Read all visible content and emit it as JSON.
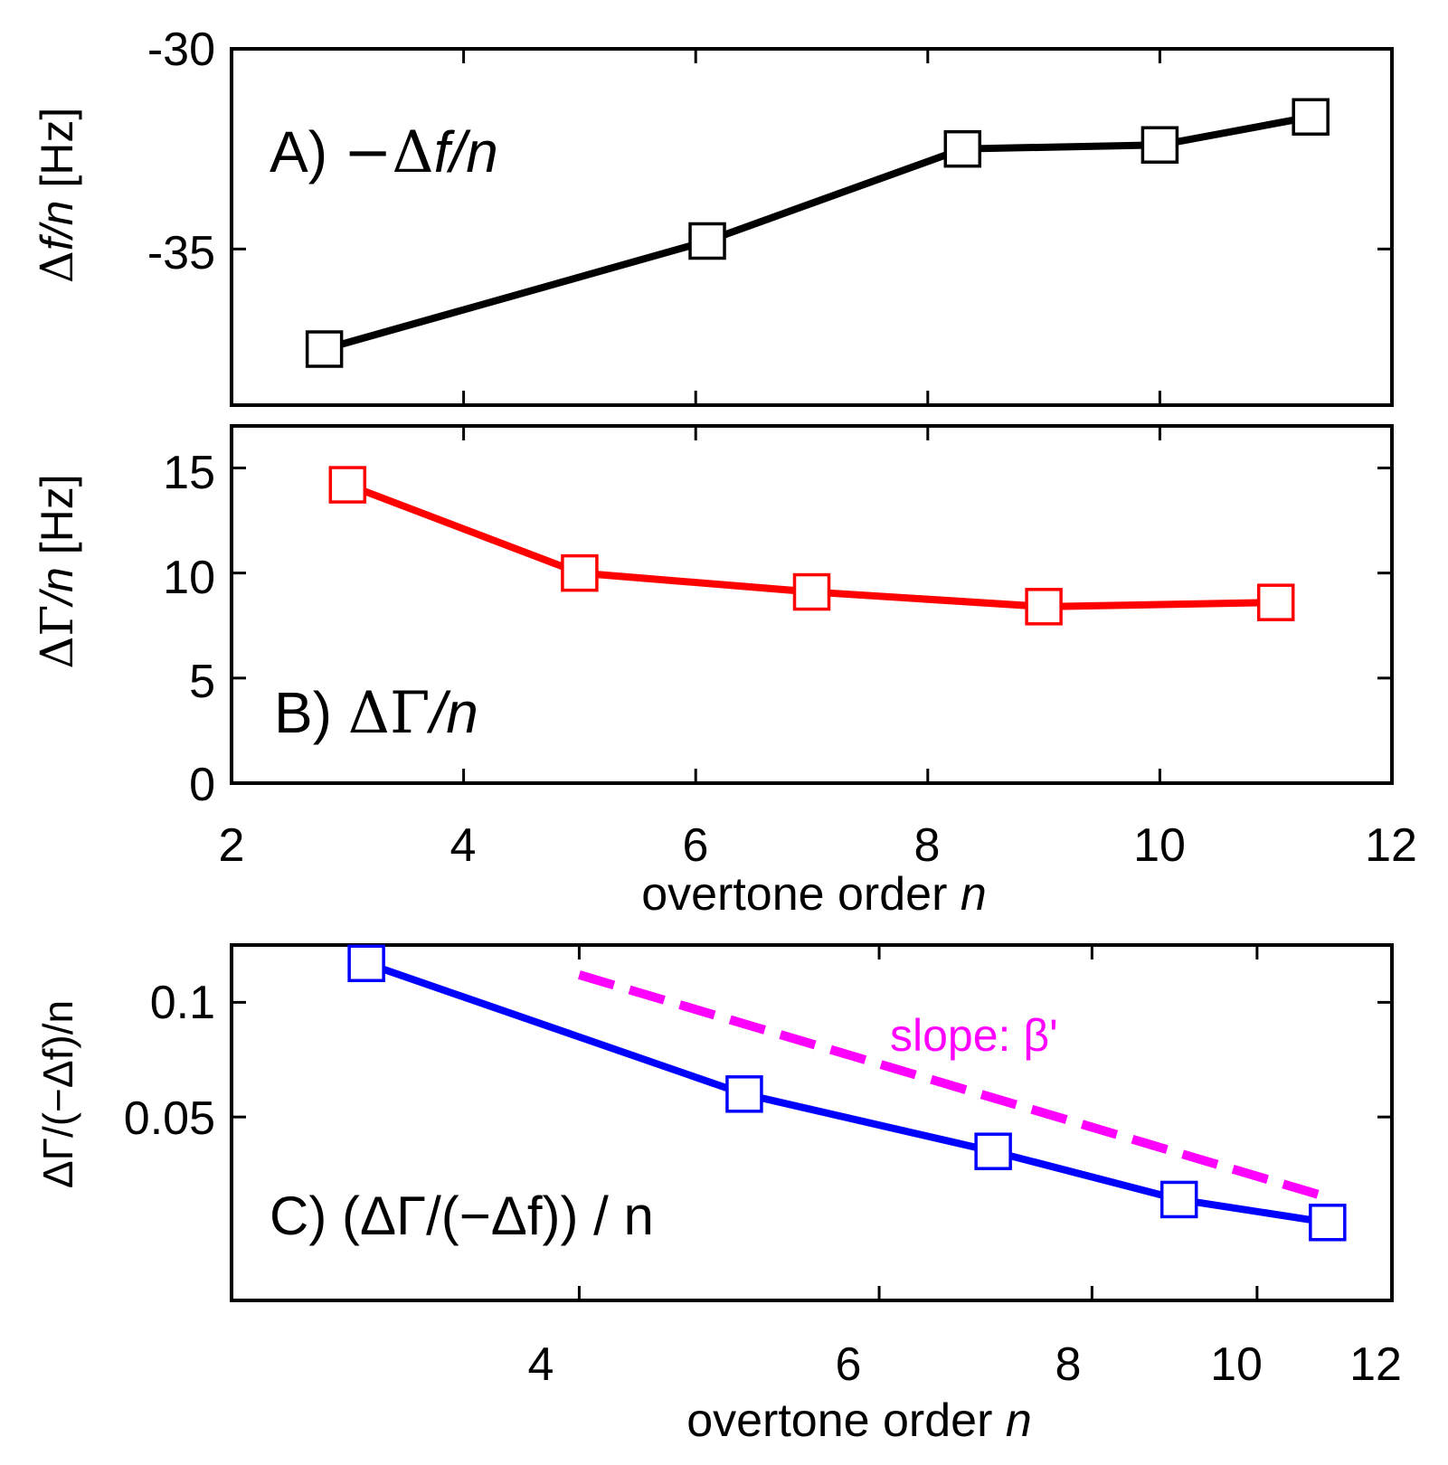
{
  "chart_data": [
    {
      "id": "A",
      "type": "line",
      "panel_label": "A)",
      "panel_title_symbol": "−Δ",
      "panel_title_var": "f/n",
      "ylabel_symbol": "Δ",
      "ylabel_var": "f/n",
      "ylabel_unit": "[Hz]",
      "xscale": "linear",
      "xlim": [
        2,
        12
      ],
      "ylim": [
        -38.9,
        -30
      ],
      "x_ticks": [
        2,
        4,
        6,
        8,
        10,
        12
      ],
      "y_ticks": [
        -30,
        -35
      ],
      "y_tick_labels": [
        "-30",
        "-35"
      ],
      "color": "#000000",
      "series": [
        {
          "name": "-Δf/n",
          "x": [
            2.8,
            6.1,
            8.3,
            10.0,
            11.3
          ],
          "y": [
            -37.5,
            -34.8,
            -32.5,
            -32.4,
            -31.7
          ]
        }
      ]
    },
    {
      "id": "B",
      "type": "line",
      "panel_label": "B)",
      "panel_title_symbol": "ΔΓ",
      "panel_title_var": "/n",
      "ylabel_symbol": "ΔΓ",
      "ylabel_var": "/n",
      "ylabel_unit": "[Hz]",
      "xscale": "linear",
      "xlim": [
        2,
        12
      ],
      "ylim": [
        0,
        17
      ],
      "x_ticks": [
        2,
        4,
        6,
        8,
        10,
        12
      ],
      "x_tick_labels": [
        "2",
        "4",
        "6",
        "8",
        "10",
        "12"
      ],
      "y_ticks": [
        0,
        5,
        10,
        15
      ],
      "y_tick_labels": [
        "0",
        "5",
        "10",
        "15"
      ],
      "xlabel": "overtone order",
      "xlabel_var": "n",
      "color": "#ff0000",
      "series": [
        {
          "name": "ΔΓ/n",
          "x": [
            3,
            5,
            7,
            9,
            11
          ],
          "y": [
            14.2,
            10.0,
            9.1,
            8.4,
            8.6
          ]
        }
      ]
    },
    {
      "id": "C",
      "type": "line",
      "panel_label": "C)",
      "panel_title": "(ΔΓ/(−Δf)) / n",
      "ylabel": "ΔΓ/(−Δf)/n",
      "xscale": "log",
      "xlim": [
        2.5,
        12
      ],
      "ylim": [
        -0.03,
        0.125
      ],
      "x_ticks": [
        4,
        6,
        8,
        10,
        12
      ],
      "x_tick_labels": [
        "4",
        "6",
        "8",
        "10",
        "12"
      ],
      "y_ticks": [
        0.1,
        0.05
      ],
      "y_tick_labels": [
        "0.1",
        "0.05"
      ],
      "xlabel": "overtone order",
      "xlabel_var": "n",
      "series": [
        {
          "name": "(ΔΓ/(−Δf))/n",
          "color": "#0000ff",
          "style": "solid",
          "markers": true,
          "x": [
            3,
            5,
            7,
            9,
            11
          ],
          "y": [
            0.117,
            0.06,
            0.035,
            0.014,
            0.004
          ]
        },
        {
          "name": "slope: β'",
          "color": "#ff00ff",
          "style": "dashed",
          "markers": false,
          "x": [
            4,
            11
          ],
          "y": [
            0.112,
            0.015
          ]
        }
      ],
      "annotation": "slope: β'"
    }
  ]
}
